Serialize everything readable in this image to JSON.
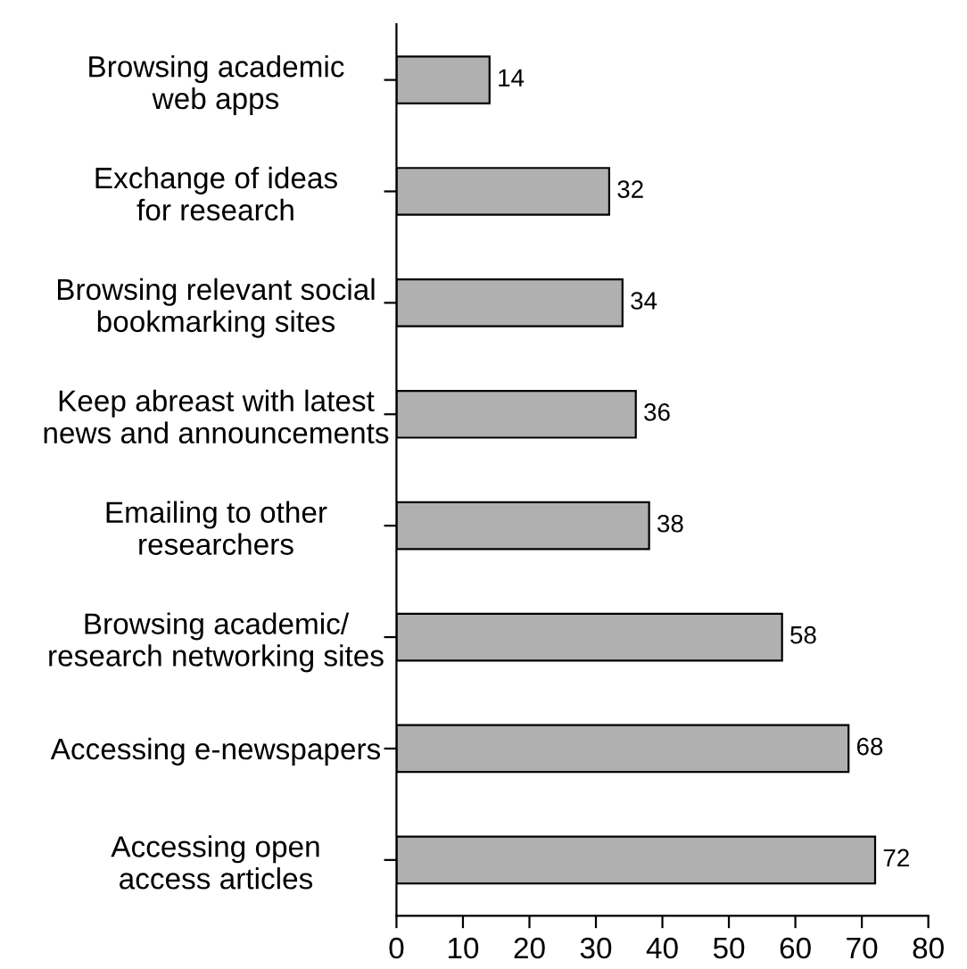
{
  "chart_data": {
    "type": "bar",
    "orientation": "horizontal",
    "categories": [
      "Browsing academic\nweb apps",
      "Exchange of ideas\nfor research",
      "Browsing relevant social\nbookmarking sites",
      "Keep abreast with latest\nnews and announcements",
      "Emailing to other\nresearchers",
      "Browsing academic/\nresearch networking sites",
      "Accessing e-newspapers",
      "Accessing open\naccess articles"
    ],
    "values": [
      14,
      32,
      34,
      36,
      38,
      58,
      68,
      72
    ],
    "color": "#b0b0b0",
    "xlim": [
      0,
      80
    ],
    "xticks": [
      0,
      10,
      20,
      30,
      40,
      50,
      60,
      70,
      80
    ],
    "data_labels": true,
    "grid": false,
    "legend": false
  }
}
